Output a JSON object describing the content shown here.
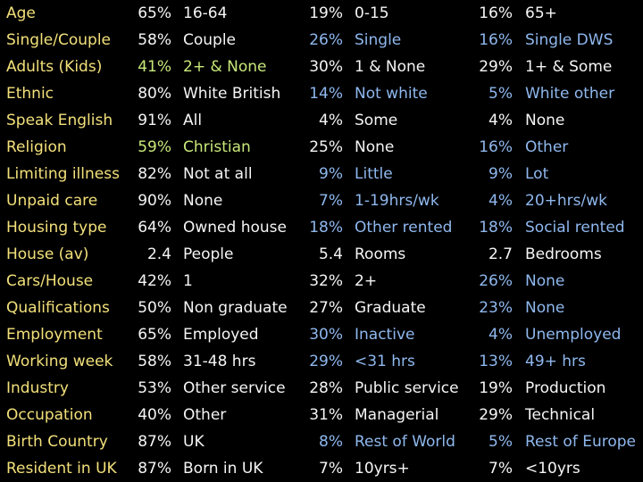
{
  "colors": {
    "background": "#000000",
    "label": "#f2e07a",
    "white": "#f5f5f5",
    "green": "#c8e87a",
    "blue": "#8fb8ee"
  },
  "rows": [
    {
      "label": "Age",
      "cells": [
        {
          "pct": "65%",
          "text": "16-64",
          "color": "white"
        },
        {
          "pct": "19%",
          "text": "0-15",
          "color": "white"
        },
        {
          "pct": "16%",
          "text": "65+",
          "color": "white"
        }
      ]
    },
    {
      "label": "Single/Couple",
      "cells": [
        {
          "pct": "58%",
          "text": "Couple",
          "color": "white"
        },
        {
          "pct": "26%",
          "text": "Single",
          "color": "blue"
        },
        {
          "pct": "16%",
          "text": "Single DWS",
          "color": "blue"
        }
      ]
    },
    {
      "label": "Adults (Kids)",
      "cells": [
        {
          "pct": "41%",
          "text": "2+ & None",
          "color": "green"
        },
        {
          "pct": "30%",
          "text": "1 & None",
          "color": "white"
        },
        {
          "pct": "29%",
          "text": "1+ & Some",
          "color": "white"
        }
      ]
    },
    {
      "label": "Ethnic",
      "cells": [
        {
          "pct": "80%",
          "text": "White British",
          "color": "white"
        },
        {
          "pct": "14%",
          "text": "Not white",
          "color": "blue"
        },
        {
          "pct": "5%",
          "text": "White other",
          "color": "blue"
        }
      ]
    },
    {
      "label": "Speak English",
      "cells": [
        {
          "pct": "91%",
          "text": "All",
          "color": "white"
        },
        {
          "pct": "4%",
          "text": "Some",
          "color": "white"
        },
        {
          "pct": "4%",
          "text": "None",
          "color": "white"
        }
      ]
    },
    {
      "label": "Religion",
      "cells": [
        {
          "pct": "59%",
          "text": "Christian",
          "color": "green"
        },
        {
          "pct": "25%",
          "text": "None",
          "color": "white"
        },
        {
          "pct": "16%",
          "text": "Other",
          "color": "blue"
        }
      ]
    },
    {
      "label": "Limiting illness",
      "cells": [
        {
          "pct": "82%",
          "text": "Not at all",
          "color": "white"
        },
        {
          "pct": "9%",
          "text": "Little",
          "color": "blue"
        },
        {
          "pct": "9%",
          "text": "Lot",
          "color": "blue"
        }
      ]
    },
    {
      "label": "Unpaid care",
      "cells": [
        {
          "pct": "90%",
          "text": "None",
          "color": "white"
        },
        {
          "pct": "7%",
          "text": "1-19hrs/wk",
          "color": "blue"
        },
        {
          "pct": "4%",
          "text": "20+hrs/wk",
          "color": "blue"
        }
      ]
    },
    {
      "label": "Housing type",
      "cells": [
        {
          "pct": "64%",
          "text": "Owned house",
          "color": "white"
        },
        {
          "pct": "18%",
          "text": "Other rented",
          "color": "blue"
        },
        {
          "pct": "18%",
          "text": "Social rented",
          "color": "blue"
        }
      ]
    },
    {
      "label": "House (av)",
      "cells": [
        {
          "pct": "2.4",
          "text": "People",
          "color": "white"
        },
        {
          "pct": "5.4",
          "text": "Rooms",
          "color": "white"
        },
        {
          "pct": "2.7",
          "text": "Bedrooms",
          "color": "white"
        }
      ]
    },
    {
      "label": "Cars/House",
      "cells": [
        {
          "pct": "42%",
          "text": "1",
          "color": "white"
        },
        {
          "pct": "32%",
          "text": "2+",
          "color": "white"
        },
        {
          "pct": "26%",
          "text": "None",
          "color": "blue"
        }
      ]
    },
    {
      "label": "Qualifications",
      "cells": [
        {
          "pct": "50%",
          "text": "Non graduate",
          "color": "white"
        },
        {
          "pct": "27%",
          "text": "Graduate",
          "color": "white"
        },
        {
          "pct": "23%",
          "text": "None",
          "color": "blue"
        }
      ]
    },
    {
      "label": "Employment",
      "cells": [
        {
          "pct": "65%",
          "text": "Employed",
          "color": "white"
        },
        {
          "pct": "30%",
          "text": "Inactive",
          "color": "blue"
        },
        {
          "pct": "4%",
          "text": "Unemployed",
          "color": "blue"
        }
      ]
    },
    {
      "label": "Working week",
      "cells": [
        {
          "pct": "58%",
          "text": "31-48 hrs",
          "color": "white"
        },
        {
          "pct": "29%",
          "text": "<31 hrs",
          "color": "blue"
        },
        {
          "pct": "13%",
          "text": "49+ hrs",
          "color": "blue"
        }
      ]
    },
    {
      "label": "Industry",
      "cells": [
        {
          "pct": "53%",
          "text": "Other service",
          "color": "white"
        },
        {
          "pct": "28%",
          "text": "Public service",
          "color": "white"
        },
        {
          "pct": "19%",
          "text": "Production",
          "color": "white"
        }
      ]
    },
    {
      "label": "Occupation",
      "cells": [
        {
          "pct": "40%",
          "text": "Other",
          "color": "white"
        },
        {
          "pct": "31%",
          "text": "Managerial",
          "color": "white"
        },
        {
          "pct": "29%",
          "text": "Technical",
          "color": "white"
        }
      ]
    },
    {
      "label": "Birth Country",
      "cells": [
        {
          "pct": "87%",
          "text": "UK",
          "color": "white"
        },
        {
          "pct": "8%",
          "text": "Rest of World",
          "color": "blue"
        },
        {
          "pct": "5%",
          "text": "Rest of Europe",
          "color": "blue"
        }
      ]
    },
    {
      "label": "Resident in UK",
      "cells": [
        {
          "pct": "87%",
          "text": "Born in UK",
          "color": "white"
        },
        {
          "pct": "7%",
          "text": "10yrs+",
          "color": "white"
        },
        {
          "pct": "7%",
          "text": "<10yrs",
          "color": "white"
        }
      ]
    }
  ]
}
